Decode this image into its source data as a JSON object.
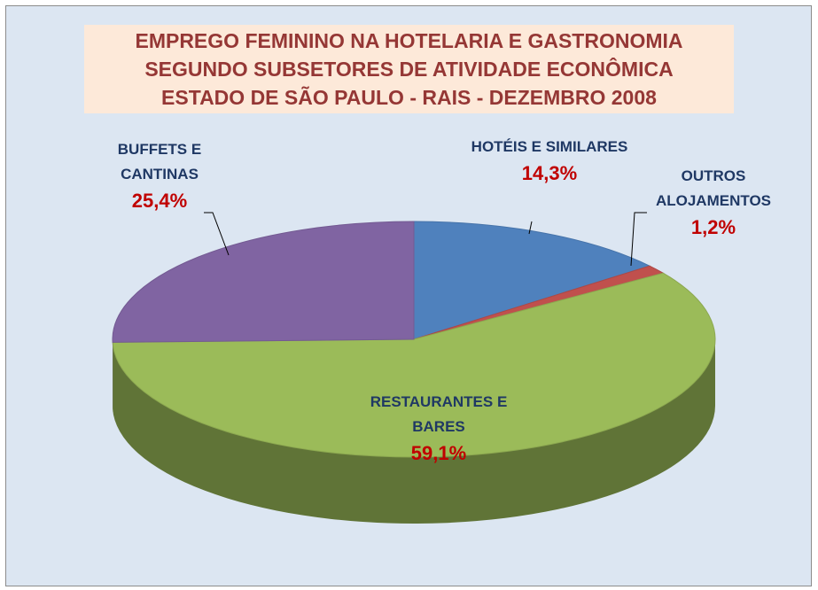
{
  "chart_data": {
    "type": "pie",
    "title": [
      "EMPREGO FEMININO NA HOTELARIA E GASTRONOMIA",
      "SEGUNDO SUBSETORES DE ATIVIDADE ECONÔMICA",
      "ESTADO DE SÃO PAULO - RAIS - DEZEMBRO  2008"
    ],
    "categories": [
      "HOTÉIS E SIMILARES",
      "OUTROS ALOJAMENTOS",
      "RESTAURANTES E BARES",
      "BUFFETS E CANTINAS"
    ],
    "values": [
      14.3,
      1.2,
      59.1,
      25.4
    ],
    "value_labels": [
      "14,3%",
      "1,2%",
      "59,1%",
      "25,4%"
    ],
    "colors": [
      "#4f81bd",
      "#c0504d",
      "#9bbb59",
      "#8064a2"
    ]
  }
}
